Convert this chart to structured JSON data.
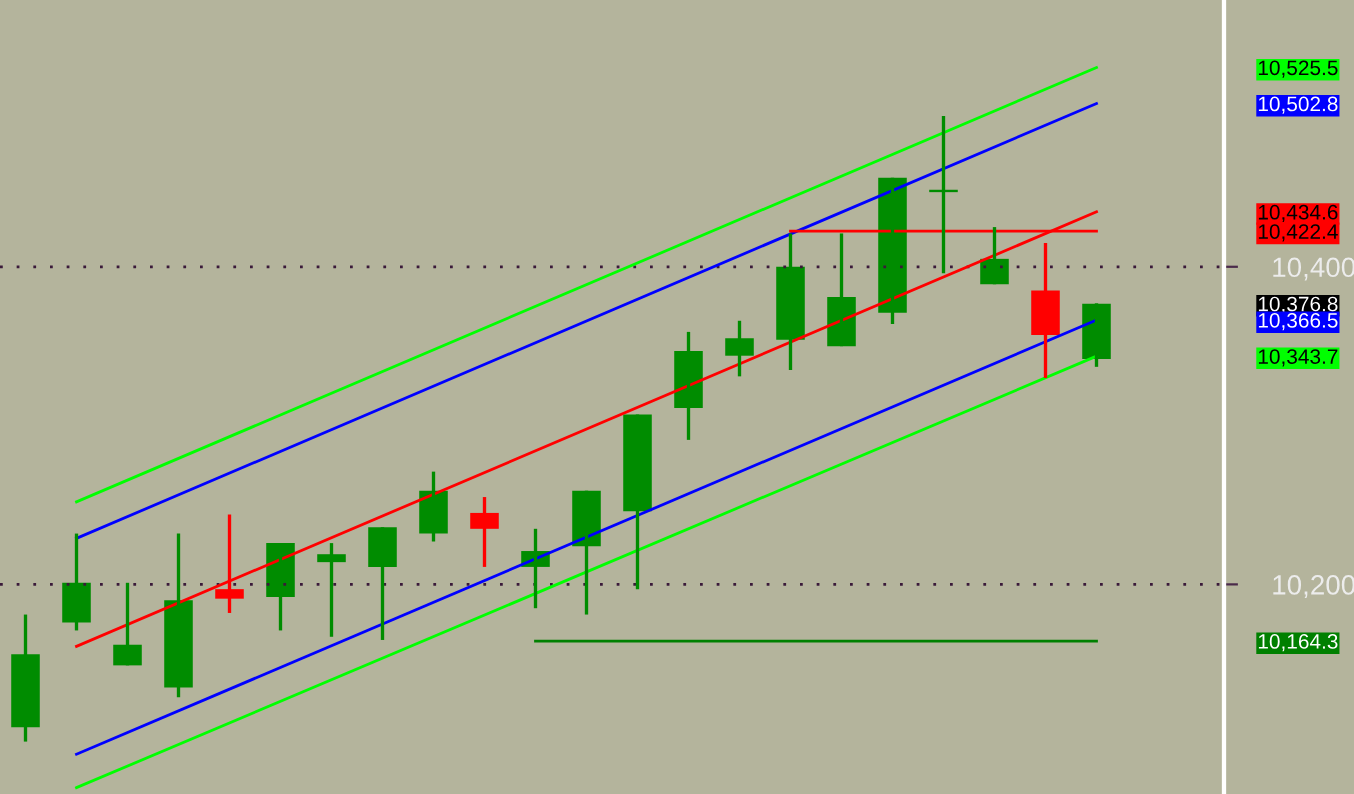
{
  "chart_data": {
    "type": "candlestick",
    "categories": [
      null,
      null,
      null,
      null,
      null,
      null,
      null,
      null,
      null,
      null,
      null,
      null,
      null,
      null,
      null,
      null,
      null,
      null,
      null,
      null,
      null,
      null,
      null,
      null
    ],
    "ohlc": [
      [
        10110,
        10181,
        10101,
        10156
      ],
      [
        10176,
        10232,
        10171,
        10201
      ],
      [
        10149,
        10201,
        10149,
        10162
      ],
      [
        10135,
        10232,
        10129,
        10190
      ],
      [
        10197,
        10244,
        10182,
        10191
      ],
      [
        10192,
        10226,
        10171,
        10226
      ],
      [
        10214,
        10226,
        10167,
        10219
      ],
      [
        10211,
        10236,
        10165,
        10236
      ],
      [
        10232,
        10271,
        10227,
        10259
      ],
      [
        10245,
        10255,
        10211,
        10235
      ],
      [
        10211,
        10235,
        10185,
        10221
      ],
      [
        10224,
        10259,
        10181,
        10259
      ],
      [
        10246,
        10307,
        10197,
        10307
      ],
      [
        10311,
        10359,
        10291,
        10347
      ],
      [
        10344,
        10366,
        10331,
        10355
      ],
      [
        10354,
        10421,
        10335,
        10400
      ],
      [
        10350,
        10421,
        10350,
        10381
      ],
      [
        10371,
        10456,
        10364,
        10456
      ],
      [
        10447,
        10495,
        10396,
        10447
      ],
      [
        10389,
        10425,
        10389,
        10405
      ],
      [
        10385,
        10415,
        10330,
        10357
      ],
      [
        10342,
        10377,
        10337,
        10376.8
      ],
      null,
      null
    ],
    "colors": [
      "#008c00",
      "#008c00",
      "#008c00",
      "#008c00",
      "#ff0000",
      "#008c00",
      "#008c00",
      "#008c00",
      "#008c00",
      "#ff0000",
      "#008c00",
      "#008c00",
      "#008c00",
      "#008c00",
      "#008c00",
      "#008c00",
      "#008c00",
      "#008c00",
      "#008c00",
      "#008c00",
      "#ff0000",
      "#008c00",
      null,
      null
    ],
    "series": [
      {
        "type": "line",
        "color": "#00ff00",
        "values": [
          null,
          10252,
          null,
          null,
          null,
          null,
          null,
          null,
          null,
          null,
          null,
          null,
          null,
          null,
          null,
          null,
          null,
          null,
          null,
          null,
          null,
          10525.5,
          null,
          null
        ]
      },
      {
        "type": "line",
        "color": "#0000ff",
        "values": [
          null,
          10229,
          null,
          null,
          null,
          null,
          null,
          null,
          null,
          null,
          null,
          null,
          null,
          null,
          null,
          null,
          null,
          null,
          null,
          null,
          null,
          10502.8,
          null,
          null
        ]
      },
      {
        "type": "line",
        "color": "#ff0000",
        "values": [
          null,
          10161,
          null,
          null,
          null,
          null,
          null,
          null,
          null,
          null,
          null,
          null,
          null,
          null,
          null,
          null,
          null,
          null,
          null,
          null,
          null,
          10434.6,
          null,
          null
        ]
      },
      {
        "type": "line",
        "color": "#ff0000",
        "values": [
          null,
          null,
          null,
          null,
          null,
          null,
          null,
          null,
          null,
          null,
          null,
          null,
          null,
          null,
          null,
          10422.4,
          null,
          null,
          null,
          null,
          null,
          10422.4,
          null,
          null
        ]
      },
      {
        "type": "line",
        "color": "#0000ff",
        "values": [
          null,
          10093,
          null,
          null,
          null,
          null,
          null,
          null,
          null,
          null,
          null,
          null,
          null,
          null,
          null,
          null,
          null,
          null,
          null,
          null,
          null,
          10366.5,
          null,
          null
        ]
      },
      {
        "type": "line",
        "color": "#00ff00",
        "values": [
          null,
          10072,
          null,
          null,
          null,
          null,
          null,
          null,
          null,
          null,
          null,
          null,
          null,
          null,
          null,
          null,
          null,
          null,
          null,
          null,
          null,
          10343.7,
          null,
          null
        ]
      },
      {
        "type": "line",
        "color": "#008000",
        "values": [
          null,
          null,
          null,
          null,
          null,
          null,
          null,
          null,
          null,
          null,
          10164.3,
          null,
          null,
          null,
          null,
          null,
          null,
          null,
          null,
          null,
          null,
          10164.3,
          null,
          null
        ]
      }
    ],
    "ylim": [
      10068,
      10568
    ],
    "yticks": [
      {
        "value": 10200,
        "label": "10,200"
      },
      {
        "value": 10400,
        "label": "10,400"
      }
    ],
    "y2lim": [
      10068,
      10568
    ],
    "y2ticks": [
      {
        "value": 10525.5,
        "label": "10,525.5"
      },
      {
        "value": 10502.8,
        "label": "10,502.8"
      },
      {
        "value": 10434.6,
        "label": "10,434.6"
      },
      {
        "value": 10422.4,
        "label": "10,422.4"
      },
      {
        "value": 10376.8,
        "label": "10,376.8"
      },
      {
        "value": 10366.5,
        "label": "10,366.5"
      },
      {
        "value": 10343.7,
        "label": "10,343.7"
      },
      {
        "value": 10164.3,
        "label": "10,164.3"
      }
    ],
    "grid": "y",
    "line_style": "solid",
    "marker": "none",
    "legend": false
  }
}
